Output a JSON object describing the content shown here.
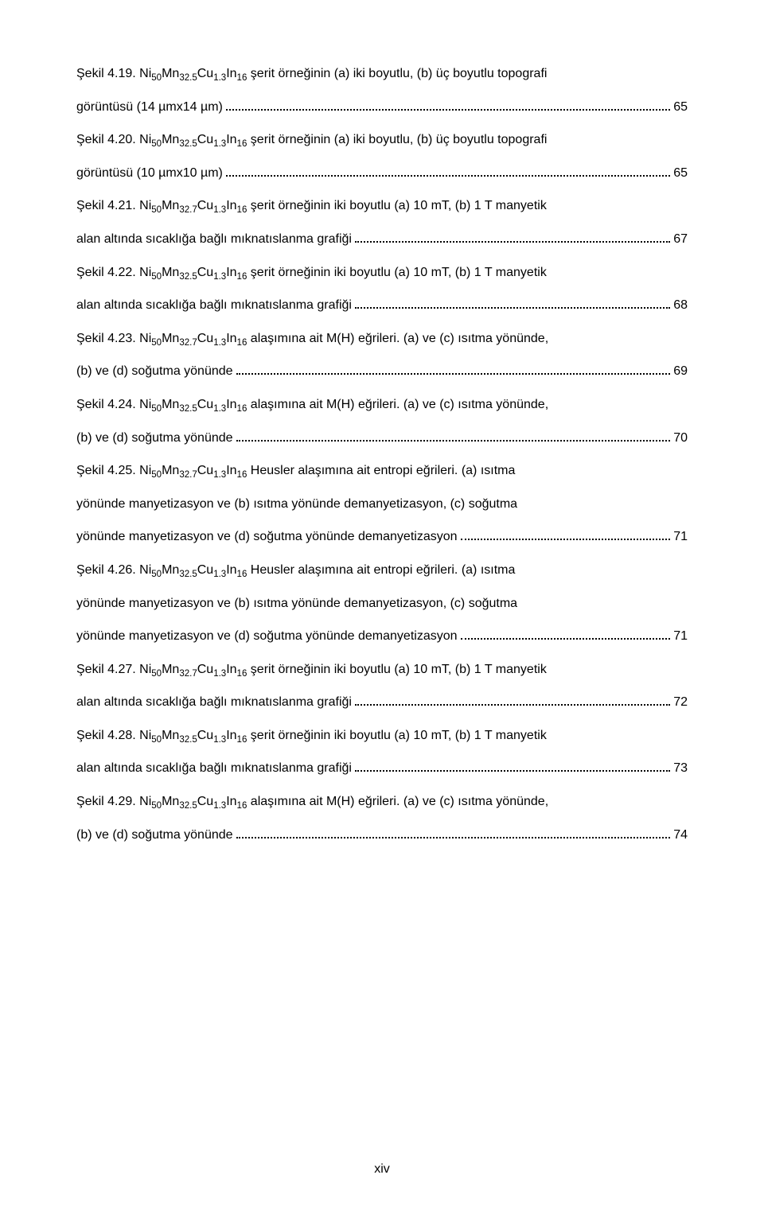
{
  "footer": "xiv",
  "entries": [
    {
      "lines": [
        "Şekil 4.19. Ni<sub>50</sub>Mn<sub>32.5</sub>Cu<sub>1.3</sub>In<sub>16</sub> şerit örneğinin (a) iki boyutlu, (b) üç boyutlu topografi"
      ],
      "last": "görüntüsü (14 µmx14 µm)",
      "page": "65"
    },
    {
      "lines": [
        "Şekil 4.20. Ni<sub>50</sub>Mn<sub>32.5</sub>Cu<sub>1.3</sub>In<sub>16</sub> şerit örneğinin (a) iki boyutlu, (b) üç boyutlu topografi"
      ],
      "last": "görüntüsü (10 µmx10 µm)",
      "page": "65"
    },
    {
      "lines": [
        "Şekil 4.21. Ni<sub>50</sub>Mn<sub>32.7</sub>Cu<sub>1.3</sub>In<sub>16</sub> şerit örneğinin iki boyutlu (a) 10 mT, (b) 1 T manyetik"
      ],
      "last": "alan altında sıcaklığa bağlı mıknatıslanma grafiği",
      "page": "67"
    },
    {
      "lines": [
        "Şekil 4.22. Ni<sub>50</sub>Mn<sub>32.5</sub>Cu<sub>1.3</sub>In<sub>16</sub> şerit örneğinin iki boyutlu (a) 10 mT, (b) 1 T manyetik"
      ],
      "last": "alan altında sıcaklığa bağlı mıknatıslanma grafiği",
      "page": "68"
    },
    {
      "lines": [
        "Şekil 4.23. Ni<sub>50</sub>Mn<sub>32.7</sub>Cu<sub>1.3</sub>In<sub>16</sub> alaşımına ait M(H) eğrileri. (a) ve (c) ısıtma yönünde,"
      ],
      "last": "(b) ve (d) soğutma yönünde",
      "page": "69"
    },
    {
      "lines": [
        "Şekil 4.24. Ni<sub>50</sub>Mn<sub>32.5</sub>Cu<sub>1.3</sub>In<sub>16</sub> alaşımına ait M(H) eğrileri. (a) ve (c) ısıtma yönünde,"
      ],
      "last": "(b) ve (d) soğutma yönünde",
      "page": "70"
    },
    {
      "lines": [
        "Şekil 4.25. Ni<sub>50</sub>Mn<sub>32.7</sub>Cu<sub>1.3</sub>In<sub>16</sub> Heusler alaşımına ait entropi eğrileri. (a) ısıtma",
        "yönünde manyetizasyon ve (b) ısıtma yönünde demanyetizasyon, (c) soğutma"
      ],
      "last": "yönünde manyetizasyon ve (d) soğutma yönünde demanyetizasyon",
      "page": "71"
    },
    {
      "lines": [
        "Şekil 4.26. Ni<sub>50</sub>Mn<sub>32.5</sub>Cu<sub>1.3</sub>In<sub>16</sub> Heusler alaşımına ait entropi eğrileri. (a) ısıtma",
        "yönünde manyetizasyon ve (b) ısıtma yönünde demanyetizasyon, (c) soğutma"
      ],
      "last": "yönünde manyetizasyon ve (d) soğutma yönünde demanyetizasyon",
      "page": "71"
    },
    {
      "lines": [
        "Şekil 4.27. Ni<sub>50</sub>Mn<sub>32.7</sub>Cu<sub>1.3</sub>In<sub>16</sub> şerit örneğinin iki boyutlu (a) 10 mT, (b) 1 T manyetik"
      ],
      "last": "alan altında sıcaklığa bağlı mıknatıslanma grafiği",
      "page": "72"
    },
    {
      "lines": [
        "Şekil 4.28. Ni<sub>50</sub>Mn<sub>32.5</sub>Cu<sub>1.3</sub>In<sub>16</sub> şerit örneğinin iki boyutlu (a) 10 mT, (b) 1 T manyetik"
      ],
      "last": "alan altında sıcaklığa bağlı mıknatıslanma grafiği",
      "page": "73"
    },
    {
      "lines": [
        "Şekil 4.29. Ni<sub>50</sub>Mn<sub>32.5</sub>Cu<sub>1.3</sub>In<sub>16</sub> alaşımına ait M(H) eğrileri. (a) ve (c) ısıtma yönünde,"
      ],
      "last": "(b) ve (d) soğutma yönünde",
      "page": "74"
    }
  ]
}
